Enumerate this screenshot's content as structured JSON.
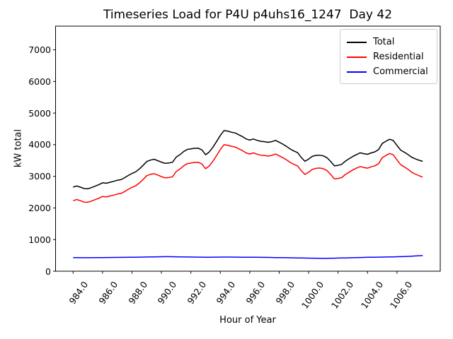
{
  "chart_data": {
    "type": "line",
    "title": "Timeseries Load for P4U p4uhs16_1247  Day 42",
    "xlabel": "Hour of Year",
    "ylabel": "kW total",
    "grid": false,
    "legend_position": "upper right",
    "xlim": [
      982.81,
      1008.94
    ],
    "ylim": [
      0,
      7750
    ],
    "xticks": {
      "values": [
        984,
        986,
        988,
        990,
        992,
        994,
        996,
        998,
        1000,
        1002,
        1004,
        1006
      ],
      "labels": [
        "984.0",
        "986.0",
        "988.0",
        "990.0",
        "992.0",
        "994.0",
        "996.0",
        "998.0",
        "1000.0",
        "1002.0",
        "1004.0",
        "1006.0"
      ]
    },
    "yticks": {
      "values": [
        0,
        1000,
        2000,
        3000,
        4000,
        5000,
        6000,
        7000
      ],
      "labels": [
        "0",
        "1000",
        "2000",
        "3000",
        "4000",
        "5000",
        "6000",
        "7000"
      ]
    },
    "x": [
      984.0,
      984.25,
      984.5,
      984.75,
      985.0,
      985.25,
      985.5,
      985.75,
      986.0,
      986.25,
      986.5,
      986.75,
      987.0,
      987.25,
      987.5,
      987.75,
      988.0,
      988.25,
      988.5,
      988.75,
      989.0,
      989.25,
      989.5,
      989.75,
      990.0,
      990.25,
      990.5,
      990.75,
      991.0,
      991.25,
      991.5,
      991.75,
      992.0,
      992.25,
      992.5,
      992.75,
      993.0,
      993.25,
      993.5,
      993.75,
      994.0,
      994.25,
      994.5,
      994.75,
      995.0,
      995.25,
      995.5,
      995.75,
      996.0,
      996.25,
      996.5,
      996.75,
      997.0,
      997.25,
      997.5,
      997.75,
      998.0,
      998.25,
      998.5,
      998.75,
      999.0,
      999.25,
      999.5,
      999.75,
      1000.0,
      1000.25,
      1000.5,
      1000.75,
      1001.0,
      1001.25,
      1001.5,
      1001.75,
      1002.0,
      1002.25,
      1002.5,
      1002.75,
      1003.0,
      1003.25,
      1003.5,
      1003.75,
      1004.0,
      1004.25,
      1004.5,
      1004.75,
      1005.0,
      1005.25,
      1005.5,
      1005.75,
      1006.0,
      1006.25,
      1006.5,
      1006.75,
      1007.0,
      1007.25,
      1007.5,
      1007.75
    ],
    "series": [
      {
        "name": "Total",
        "color": "#000000",
        "values": [
          2660,
          2696,
          2657,
          2611,
          2606,
          2645,
          2690,
          2738,
          2797,
          2781,
          2812,
          2840,
          2876,
          2895,
          2958,
          3029,
          3090,
          3142,
          3234,
          3346,
          3468,
          3513,
          3539,
          3496,
          3448,
          3411,
          3422,
          3443,
          3606,
          3684,
          3782,
          3850,
          3868,
          3886,
          3890,
          3834,
          3683,
          3773,
          3924,
          4105,
          4296,
          4447,
          4432,
          4396,
          4373,
          4314,
          4258,
          4184,
          4146,
          4180,
          4139,
          4108,
          4097,
          4076,
          4096,
          4137,
          4080,
          4018,
          3946,
          3864,
          3802,
          3750,
          3598,
          3476,
          3544,
          3632,
          3662,
          3670,
          3647,
          3588,
          3470,
          3332,
          3345,
          3380,
          3481,
          3556,
          3627,
          3688,
          3743,
          3716,
          3697,
          3741,
          3775,
          3845,
          4037,
          4109,
          4171,
          4134,
          3977,
          3831,
          3763,
          3690,
          3604,
          3554,
          3509,
          3472
        ]
      },
      {
        "name": "Residential",
        "color": "#ff0000",
        "values": [
          2230,
          2268,
          2230,
          2185,
          2180,
          2218,
          2262,
          2308,
          2365,
          2348,
          2378,
          2405,
          2440,
          2458,
          2520,
          2590,
          2650,
          2700,
          2790,
          2900,
          3020,
          3062,
          3085,
          3040,
          2990,
          2952,
          2962,
          2985,
          3150,
          3230,
          3330,
          3400,
          3420,
          3440,
          3445,
          3390,
          3240,
          3330,
          3480,
          3660,
          3850,
          4000,
          3985,
          3950,
          3928,
          3870,
          3815,
          3742,
          3705,
          3740,
          3700,
          3670,
          3660,
          3640,
          3662,
          3705,
          3650,
          3590,
          3520,
          3440,
          3380,
          3330,
          3180,
          3060,
          3130,
          3220,
          3252,
          3262,
          3240,
          3180,
          3060,
          2920,
          2930,
          2962,
          3060,
          3132,
          3200,
          3258,
          3310,
          3280,
          3258,
          3300,
          3332,
          3400,
          3590,
          3660,
          3720,
          3680,
          3520,
          3370,
          3298,
          3220,
          3128,
          3072,
          3020,
          2975
        ]
      },
      {
        "name": "Commercial",
        "color": "#0000ff",
        "values": [
          430,
          428,
          427,
          426,
          426,
          427,
          428,
          430,
          432,
          433,
          434,
          435,
          436,
          437,
          438,
          439,
          440,
          442,
          444,
          446,
          448,
          451,
          454,
          456,
          458,
          459,
          460,
          458,
          456,
          454,
          452,
          450,
          448,
          446,
          445,
          444,
          443,
          443,
          444,
          445,
          446,
          447,
          447,
          446,
          445,
          444,
          443,
          442,
          441,
          440,
          439,
          438,
          437,
          436,
          434,
          432,
          430,
          428,
          426,
          424,
          422,
          420,
          418,
          416,
          414,
          412,
          410,
          408,
          407,
          408,
          410,
          412,
          415,
          418,
          421,
          424,
          427,
          430,
          433,
          436,
          439,
          441,
          443,
          445,
          447,
          449,
          451,
          454,
          457,
          461,
          465,
          470,
          476,
          482,
          489,
          497
        ]
      }
    ]
  }
}
